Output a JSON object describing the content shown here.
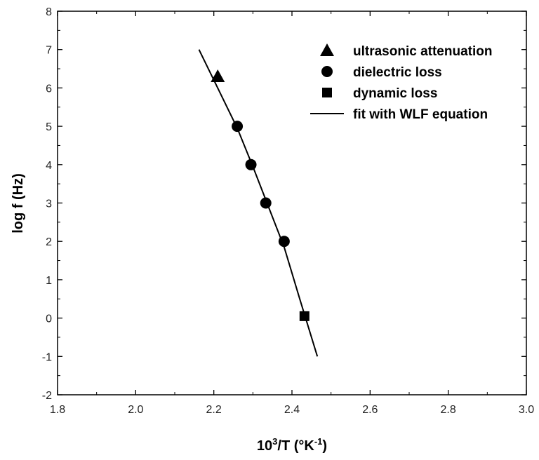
{
  "chart_data": {
    "type": "scatter",
    "xlabel": {
      "base": "10",
      "sup": "3",
      "rest": "/T  (°K",
      "sup2": "-1",
      "end": ")"
    },
    "ylabel": "log  f   (Hz)",
    "xlim": [
      1.8,
      3.0
    ],
    "ylim": [
      -2,
      8
    ],
    "x_ticks": [
      "1.8",
      "2.0",
      "2.2",
      "2.4",
      "2.6",
      "2.8",
      "3.0"
    ],
    "y_ticks": [
      "-2",
      "-1",
      "0",
      "1",
      "2",
      "3",
      "4",
      "5",
      "6",
      "7",
      "8"
    ],
    "legend_position": "top-right",
    "series": [
      {
        "name": "ultrasonic attenuation",
        "marker": "triangle",
        "points": [
          {
            "x": 2.21,
            "y": 6.3
          }
        ]
      },
      {
        "name": "dielectric loss",
        "marker": "circle",
        "points": [
          {
            "x": 2.26,
            "y": 5.0
          },
          {
            "x": 2.295,
            "y": 4.0
          },
          {
            "x": 2.333,
            "y": 3.0
          },
          {
            "x": 2.38,
            "y": 2.0
          }
        ]
      },
      {
        "name": "dynamic loss",
        "marker": "square",
        "points": [
          {
            "x": 2.432,
            "y": 0.05
          }
        ]
      },
      {
        "name": "fit with WLF equation",
        "marker": "line",
        "points": [
          {
            "x": 2.162,
            "y": 7.0
          },
          {
            "x": 2.205,
            "y": 6.1
          },
          {
            "x": 2.26,
            "y": 4.95
          },
          {
            "x": 2.3,
            "y": 3.95
          },
          {
            "x": 2.34,
            "y": 2.9
          },
          {
            "x": 2.38,
            "y": 1.85
          },
          {
            "x": 2.42,
            "y": 0.5
          },
          {
            "x": 2.465,
            "y": -1.0
          }
        ]
      }
    ],
    "grid": false,
    "color": "#000000"
  }
}
